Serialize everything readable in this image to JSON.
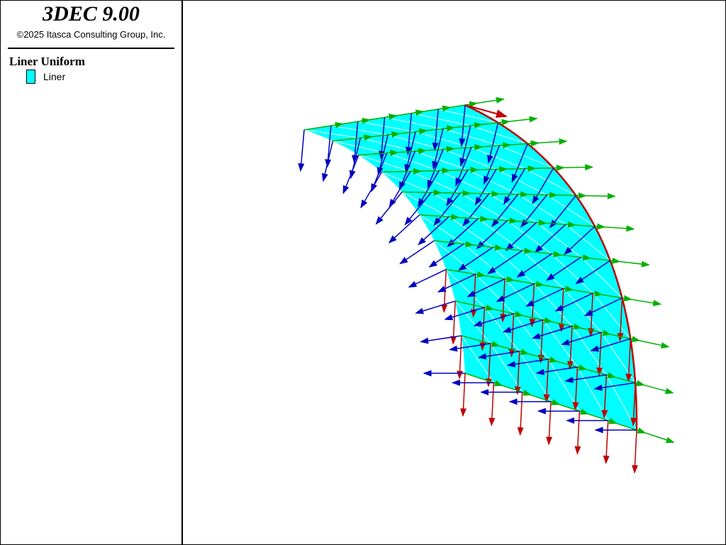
{
  "header": {
    "title": "3DEC 9.00",
    "copyright": "©2025 Itasca Consulting Group, Inc."
  },
  "legend": {
    "title": "Liner Uniform",
    "items": [
      "Liner"
    ]
  }
}
